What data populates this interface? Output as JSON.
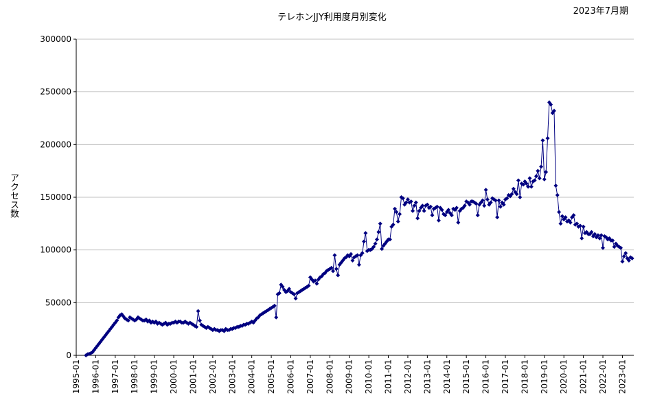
{
  "chart_data": {
    "type": "line",
    "title": "テレホンJJY利用度月別変化",
    "period_label": "2023年7月期",
    "ylabel": "アクセス数",
    "xlabel": "",
    "ylim": [
      0,
      300000
    ],
    "y_ticks": [
      "0",
      "50000",
      "100000",
      "150000",
      "200000",
      "250000",
      "300000"
    ],
    "x_ticks": [
      "1995-01",
      "1996-01",
      "1997-01",
      "1998-01",
      "1999-01",
      "2000-01",
      "2001-01",
      "2002-01",
      "2003-01",
      "2004-01",
      "2005-01",
      "2006-01",
      "2007-01",
      "2008-01",
      "2009-01",
      "2010-01",
      "2011-01",
      "2012-01",
      "2013-01",
      "2014-01",
      "2015-01",
      "2016-01",
      "2017-01",
      "2018-01",
      "2019-01",
      "2020-01",
      "2021-01",
      "2022-01",
      "2023-01"
    ],
    "grid": true,
    "legend": "none",
    "colors": {
      "series": "#000080",
      "grid": "#c0c0c0"
    },
    "series": [
      {
        "x_start": "1995-07",
        "values": [
          0,
          1000,
          1500,
          2000,
          3000,
          5000,
          7000,
          9000,
          11000,
          13000,
          15000,
          17000,
          19000,
          21000,
          23000,
          25000,
          27000,
          29000,
          31000,
          33000,
          36000,
          38000,
          39000,
          37000,
          35000,
          34000,
          33000,
          36000,
          35000,
          34000,
          33000,
          34000,
          36000,
          35000,
          34000,
          33000,
          33000,
          34000,
          32000,
          33000,
          31000,
          32000,
          31000,
          32000,
          30000,
          31000,
          30000,
          29000,
          30000,
          31000,
          29000,
          30000,
          30000,
          31000,
          31000,
          32000,
          31000,
          32000,
          32000,
          31000,
          31000,
          32000,
          31000,
          30000,
          31000,
          30000,
          29000,
          28000,
          27000,
          42000,
          33000,
          29000,
          28000,
          27000,
          26000,
          27000,
          26000,
          25000,
          24000,
          25000,
          24000,
          24000,
          23000,
          24000,
          24000,
          23000,
          25000,
          24000,
          24000,
          25000,
          25000,
          26000,
          26000,
          27000,
          27000,
          28000,
          28000,
          29000,
          29000,
          30000,
          30000,
          31000,
          32000,
          31000,
          33000,
          35000,
          36000,
          38000,
          39000,
          40000,
          41000,
          42000,
          43000,
          44000,
          45000,
          46000,
          47000,
          36000,
          58000,
          59000,
          67000,
          65000,
          62000,
          60000,
          61000,
          63000,
          60000,
          59000,
          58000,
          54000,
          59000,
          60000,
          61000,
          62000,
          63000,
          64000,
          65000,
          66000,
          74000,
          72000,
          70000,
          71000,
          68000,
          72000,
          74000,
          75000,
          77000,
          78000,
          80000,
          81000,
          82000,
          83000,
          80000,
          95000,
          82000,
          76000,
          86000,
          88000,
          90000,
          92000,
          93000,
          95000,
          94000,
          96000,
          90000,
          93000,
          94000,
          95000,
          86000,
          95000,
          97000,
          108000,
          116000,
          99000,
          100000,
          100000,
          101000,
          103000,
          106000,
          110000,
          117000,
          125000,
          101000,
          104000,
          106000,
          108000,
          110000,
          110000,
          122000,
          124000,
          139000,
          136000,
          127000,
          134000,
          150000,
          149000,
          143000,
          145000,
          148000,
          145000,
          146000,
          137000,
          142000,
          145000,
          130000,
          137000,
          140000,
          142000,
          137000,
          142000,
          143000,
          140000,
          141000,
          133000,
          139000,
          140000,
          141000,
          128000,
          140000,
          138000,
          134000,
          133000,
          136000,
          138000,
          135000,
          133000,
          139000,
          138000,
          140000,
          126000,
          137000,
          139000,
          140000,
          142000,
          146000,
          145000,
          143000,
          146000,
          146000,
          145000,
          144000,
          133000,
          143000,
          145000,
          147000,
          142000,
          157000,
          148000,
          143000,
          145000,
          149000,
          148000,
          147000,
          131000,
          147000,
          141000,
          145000,
          143000,
          148000,
          149000,
          152000,
          151000,
          153000,
          158000,
          155000,
          153000,
          166000,
          150000,
          163000,
          162000,
          165000,
          163000,
          160000,
          168000,
          160000,
          165000,
          166000,
          170000,
          175000,
          168000,
          179000,
          204000,
          167000,
          174000,
          206000,
          240000,
          238000,
          230000,
          232000,
          161000,
          152000,
          136000,
          125000,
          132000,
          129000,
          131000,
          127000,
          128000,
          126000,
          131000,
          133000,
          124000,
          125000,
          122000,
          123000,
          111000,
          122000,
          116000,
          117000,
          115000,
          115000,
          117000,
          113000,
          115000,
          112000,
          114000,
          111000,
          114000,
          102000,
          113000,
          112000,
          110000,
          111000,
          109000,
          109000,
          103000,
          106000,
          104000,
          103000,
          102000,
          89000,
          94000,
          97000,
          92000,
          90000,
          93000,
          92000
        ]
      }
    ]
  }
}
